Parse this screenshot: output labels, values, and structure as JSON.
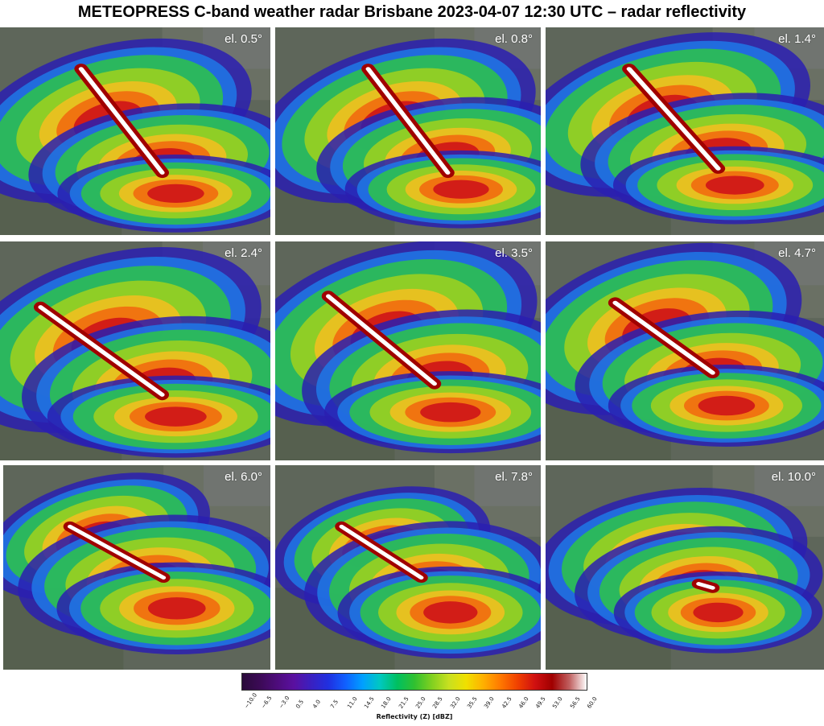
{
  "title": "METEOPRESS C-band weather radar Brisbane 2023-04-07 12:30 UTC – radar reflectivity",
  "panels": [
    {
      "elevation": "el. 0.5°"
    },
    {
      "elevation": "el. 0.8°"
    },
    {
      "elevation": "el. 1.4°"
    },
    {
      "elevation": "el. 2.4°"
    },
    {
      "elevation": "el. 3.5°"
    },
    {
      "elevation": "el. 4.7°"
    },
    {
      "elevation": "el. 6.0°"
    },
    {
      "elevation": "el. 7.8°"
    },
    {
      "elevation": "el. 10.0°"
    }
  ],
  "colorbar": {
    "label": "Reflectivity (Z) [dBZ]",
    "ticks": [
      "−10.0",
      "−6.5",
      "−3.0",
      "0.5",
      "4.0",
      "7.5",
      "11.0",
      "14.5",
      "18.0",
      "21.5",
      "25.0",
      "28.5",
      "32.0",
      "35.5",
      "39.0",
      "42.5",
      "46.0",
      "49.5",
      "53.0",
      "56.5",
      "60.0"
    ],
    "colors": [
      "#2a0a3a",
      "#3b0a55",
      "#4d0c7a",
      "#5a10a0",
      "#3a20c0",
      "#2030e0",
      "#1060ff",
      "#00a0ff",
      "#00c8c0",
      "#00c060",
      "#30c030",
      "#80d020",
      "#c8e020",
      "#f0e000",
      "#ffb000",
      "#ff7800",
      "#f04000",
      "#d01010",
      "#a00000",
      "#c06060",
      "#ffffff"
    ]
  }
}
